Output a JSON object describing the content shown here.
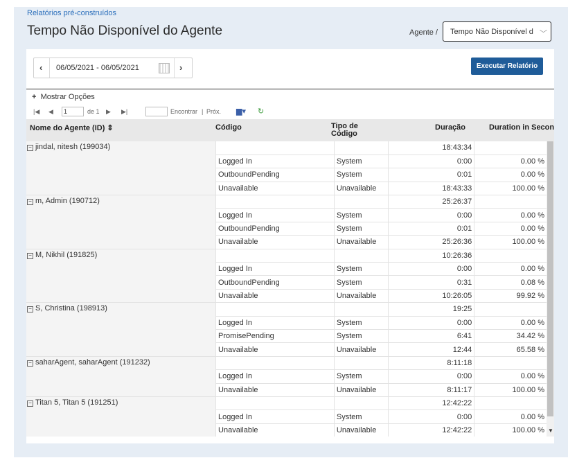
{
  "breadcrumb": "Relatórios pré-construídos",
  "title": "Tempo Não Disponível do Agente",
  "agent_filter": {
    "label": "Agente /",
    "value": "Tempo Não Disponível d"
  },
  "date_range": "06/05/2021 - 06/05/2021",
  "run_button": "Executar Relatório",
  "show_options": "Mostrar Opções",
  "pager": {
    "page": "1",
    "of_label": "de 1",
    "find_label": "Encontrar",
    "separator": "|",
    "next_label": "Próx."
  },
  "columns": [
    "Nome do Agente (ID) ⇕",
    "Código",
    "Tipo de Código",
    "Duração",
    "Duration in Seconds"
  ],
  "column_headers": {
    "agent": "Nome do Agente (ID) ⇕",
    "code": "Código",
    "type_line1": "Tipo de",
    "type_line2": "Código",
    "duration": "Duração",
    "seconds": "Duration in Seconds"
  },
  "agents": [
    {
      "name": "jindal, nitesh (199034)",
      "total": "18:43:34",
      "rows": [
        {
          "code": "Logged In",
          "type": "System",
          "duration": "0:00",
          "pct": "0.00 %"
        },
        {
          "code": "OutboundPending",
          "type": "System",
          "duration": "0:01",
          "pct": "0.00 %"
        },
        {
          "code": "Unavailable",
          "type": "Unavailable",
          "duration": "18:43:33",
          "pct": "100.00 %"
        }
      ]
    },
    {
      "name": "m, Admin (190712)",
      "total": "25:26:37",
      "rows": [
        {
          "code": "Logged In",
          "type": "System",
          "duration": "0:00",
          "pct": "0.00 %"
        },
        {
          "code": "OutboundPending",
          "type": "System",
          "duration": "0:01",
          "pct": "0.00 %"
        },
        {
          "code": "Unavailable",
          "type": "Unavailable",
          "duration": "25:26:36",
          "pct": "100.00 %"
        }
      ]
    },
    {
      "name": "M, Nikhil (191825)",
      "total": "10:26:36",
      "rows": [
        {
          "code": "Logged In",
          "type": "System",
          "duration": "0:00",
          "pct": "0.00 %"
        },
        {
          "code": "OutboundPending",
          "type": "System",
          "duration": "0:31",
          "pct": "0.08 %"
        },
        {
          "code": "Unavailable",
          "type": "Unavailable",
          "duration": "10:26:05",
          "pct": "99.92 %"
        }
      ]
    },
    {
      "name": "S, Christina (198913)",
      "total": "19:25",
      "rows": [
        {
          "code": "Logged In",
          "type": "System",
          "duration": "0:00",
          "pct": "0.00 %"
        },
        {
          "code": "PromisePending",
          "type": "System",
          "duration": "6:41",
          "pct": "34.42 %"
        },
        {
          "code": "Unavailable",
          "type": "Unavailable",
          "duration": "12:44",
          "pct": "65.58 %"
        }
      ]
    },
    {
      "name": "saharAgent, saharAgent (191232)",
      "total": "8:11:18",
      "rows": [
        {
          "code": "Logged In",
          "type": "System",
          "duration": "0:00",
          "pct": "0.00 %"
        },
        {
          "code": "Unavailable",
          "type": "Unavailable",
          "duration": "8:11:17",
          "pct": "100.00 %"
        }
      ]
    },
    {
      "name": "Titan 5, Titan 5 (191251)",
      "total": "12:42:22",
      "rows": [
        {
          "code": "Logged In",
          "type": "System",
          "duration": "0:00",
          "pct": "0.00 %"
        },
        {
          "code": "Unavailable",
          "type": "Unavailable",
          "duration": "12:42:22",
          "pct": "100.00 %"
        }
      ]
    }
  ]
}
